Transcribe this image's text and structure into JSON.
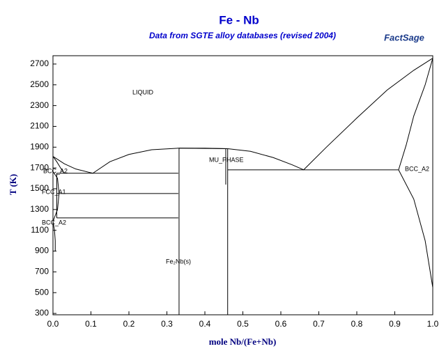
{
  "chart_data": {
    "type": "line",
    "title": "Fe - Nb",
    "subtitle": "Data from SGTE alloy databases (revised 2004)",
    "logo": "FactSage",
    "x_label": "mole Nb/(Fe+Nb)",
    "y_label": "T (K)",
    "xlim": [
      0,
      1
    ],
    "ylim": [
      287,
      2780
    ],
    "xticks": [
      {
        "value": 0,
        "label": "0.0"
      },
      0.1,
      0.2,
      0.3,
      0.4,
      0.5,
      0.6,
      0.7,
      0.8,
      0.9,
      {
        "value": 1,
        "label": "1.0"
      }
    ],
    "yticks": [
      300,
      500,
      700,
      900,
      1100,
      1300,
      1500,
      1700,
      1900,
      2100,
      2300,
      2500,
      2700
    ],
    "color": "#000000",
    "annotations": [
      "LIQUID",
      "BCC_A2",
      "FCC_A1",
      "BCC_A2",
      "MU_PHASE",
      "Fe₂Nb(s)",
      "BCC_A2"
    ],
    "lines": [
      {
        "x": [
          0,
          0.03,
          0.06,
          0.105
        ],
        "y": [
          1811,
          1740,
          1690,
          1649
        ]
      },
      {
        "x": [
          0.105,
          0.15,
          0.2,
          0.26,
          0.33,
          0.4,
          0.46
        ],
        "y": [
          1649,
          1760,
          1830,
          1875,
          1890,
          1890,
          1885
        ]
      },
      {
        "x": [
          0.46,
          0.52,
          0.58,
          0.63,
          0.66
        ],
        "y": [
          1885,
          1860,
          1800,
          1730,
          1682
        ]
      },
      {
        "x": [
          0.66,
          0.72,
          0.8,
          0.88,
          0.95,
          1.0
        ],
        "y": [
          1682,
          1900,
          2180,
          2450,
          2640,
          2756
        ]
      },
      {
        "x": [
          1.0,
          0.98,
          0.95,
          0.93,
          0.91
        ],
        "y": [
          2756,
          2500,
          2200,
          1920,
          1682
        ]
      },
      {
        "x": [
          0.91,
          0.95,
          0.98,
          1.0
        ],
        "y": [
          1682,
          1400,
          1000,
          550
        ]
      },
      {
        "x": [
          0.46,
          0.91
        ],
        "y": [
          1682,
          1682
        ]
      },
      {
        "x": [
          0,
          0.01,
          0.02,
          0.03
        ],
        "y": [
          1811,
          1760,
          1700,
          1649
        ]
      },
      {
        "x": [
          0.01,
          0.33
        ],
        "y": [
          1649,
          1649
        ]
      },
      {
        "x": [
          0.01,
          0.33
        ],
        "y": [
          1454,
          1454
        ]
      },
      {
        "x": [
          0.01,
          0.33
        ],
        "y": [
          1219,
          1219
        ]
      },
      {
        "x": [
          0,
          0.012,
          0.016,
          0.012,
          0
        ],
        "y": [
          1665,
          1600,
          1454,
          1300,
          1185
        ]
      },
      {
        "x": [
          0.01,
          0.01
        ],
        "y": [
          1649,
          1219
        ]
      },
      {
        "x": [
          0,
          0.004,
          0.006,
          0.006
        ],
        "y": [
          1185,
          1100,
          1000,
          900
        ]
      },
      {
        "x": [
          0.332,
          0.332
        ],
        "y": [
          287,
          1890
        ]
      },
      {
        "x": [
          0.332,
          0.46
        ],
        "y": [
          1890,
          1885
        ]
      },
      {
        "x": [
          0.46,
          0.46
        ],
        "y": [
          287,
          1885
        ]
      },
      {
        "x": [
          0.455,
          0.455
        ],
        "y": [
          1885,
          1540
        ]
      }
    ]
  }
}
